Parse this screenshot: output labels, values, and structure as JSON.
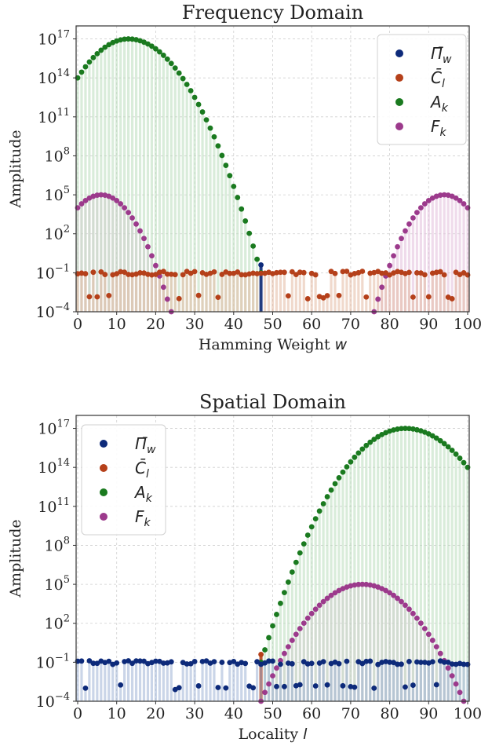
{
  "colors": {
    "Pi_w": "#0d2a7a",
    "C_l": "#b5401a",
    "A_k": "#1a7a1f",
    "F_k": "#9c3a8c",
    "Pi_w_stem": "#9fb2d6",
    "C_l_stem": "#e4b9a2",
    "A_k_stem": "#b9dcbb",
    "F_k_stem": "#e2bddb"
  },
  "chart_data": [
    {
      "type": "scatter",
      "title": "Frequency Domain",
      "xlabel": "Hamming Weight w",
      "ylabel": "Amplitude",
      "xlim": [
        0,
        100
      ],
      "ylim_log10": [
        -4,
        18
      ],
      "yscale": "log",
      "xticks": [
        "0",
        "10",
        "20",
        "30",
        "40",
        "50",
        "60",
        "70",
        "80",
        "90",
        "100"
      ],
      "yticks": [
        {
          "base": "10",
          "exp": "−4",
          "log10": -4
        },
        {
          "base": "10",
          "exp": "−1",
          "log10": -1
        },
        {
          "base": "10",
          "exp": "2",
          "log10": 2
        },
        {
          "base": "10",
          "exp": "5",
          "log10": 5
        },
        {
          "base": "10",
          "exp": "8",
          "log10": 8
        },
        {
          "base": "10",
          "exp": "11",
          "log10": 11
        },
        {
          "base": "10",
          "exp": "14",
          "log10": 14
        },
        {
          "base": "10",
          "exp": "17",
          "log10": 17
        }
      ],
      "legend_position": "top-right",
      "grid": true,
      "series": [
        {
          "key": "Pi_w",
          "name": "Π̄",
          "sub": "w",
          "description": "Single spike at w=47",
          "points": [
            [
              47,
              0.4
            ]
          ]
        },
        {
          "key": "C_l",
          "name": "C̄",
          "sub": "l",
          "description": "Fluctuating around 0.1 across all w",
          "profile": "flat",
          "level_log10": -1
        },
        {
          "key": "A_k",
          "name": "A",
          "sub": "k",
          "description": "Binomial-like peak about 1e17 at w≈13, drops to near 0.1 at w≈47",
          "peak_x": 13,
          "peak_log10": 17,
          "range": [
            0,
            47
          ]
        },
        {
          "key": "F_k",
          "name": "F",
          "sub": "k",
          "description": "Two lobes peaking about 1e5 near w≈6 and w≈94",
          "lobes": [
            {
              "center": 6,
              "peak_log10": 5
            },
            {
              "center": 94,
              "peak_log10": 5
            }
          ]
        }
      ]
    },
    {
      "type": "scatter",
      "title": "Spatial Domain",
      "xlabel": "Locality l",
      "ylabel": "Amplitude",
      "xlim": [
        0,
        100
      ],
      "ylim_log10": [
        -4,
        18
      ],
      "yscale": "log",
      "xticks": [
        "0",
        "10",
        "20",
        "30",
        "40",
        "50",
        "60",
        "70",
        "80",
        "90",
        "100"
      ],
      "yticks": [
        {
          "base": "10",
          "exp": "−4",
          "log10": -4
        },
        {
          "base": "10",
          "exp": "−1",
          "log10": -1
        },
        {
          "base": "10",
          "exp": "2",
          "log10": 2
        },
        {
          "base": "10",
          "exp": "5",
          "log10": 5
        },
        {
          "base": "10",
          "exp": "8",
          "log10": 8
        },
        {
          "base": "10",
          "exp": "11",
          "log10": 11
        },
        {
          "base": "10",
          "exp": "14",
          "log10": 14
        },
        {
          "base": "10",
          "exp": "17",
          "log10": 17
        }
      ],
      "legend_position": "top-left",
      "grid": true,
      "series": [
        {
          "key": "Pi_w",
          "name": "Π̄",
          "sub": "w",
          "description": "Fluctuating around 0.1 across all l",
          "profile": "flat",
          "level_log10": -1
        },
        {
          "key": "C_l",
          "name": "C̄",
          "sub": "l",
          "description": "Single spike at l=47",
          "points": [
            [
              47,
              0.4
            ]
          ]
        },
        {
          "key": "A_k",
          "name": "A",
          "sub": "k",
          "description": "Rises from l≈50, peak about 1e17 at l≈84",
          "peak_x": 84,
          "peak_log10": 17,
          "range": [
            47,
            100
          ]
        },
        {
          "key": "F_k",
          "name": "F",
          "sub": "k",
          "description": "Single lobe peaking about 1e5 at l≈73",
          "lobes": [
            {
              "center": 73,
              "peak_log10": 5
            }
          ]
        }
      ]
    }
  ]
}
